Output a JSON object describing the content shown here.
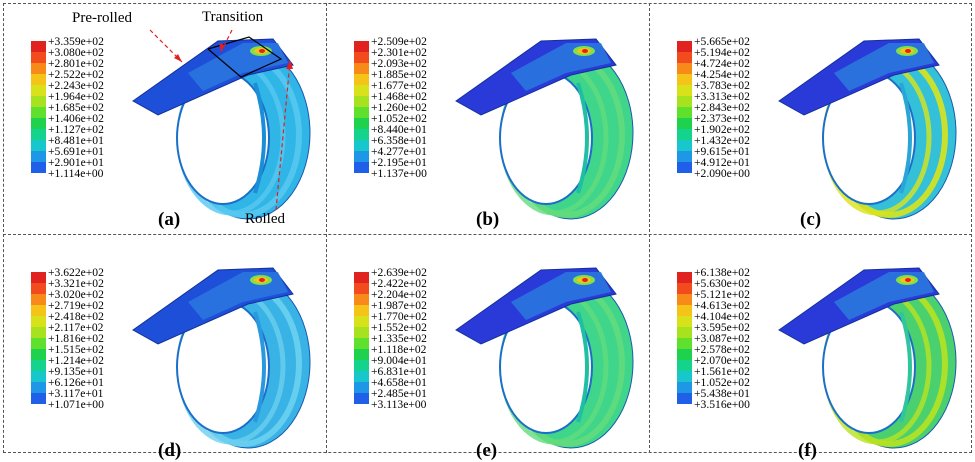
{
  "colors": [
    "#e1231f",
    "#f24b1d",
    "#f88a1a",
    "#f6c318",
    "#d8e21a",
    "#a6e21d",
    "#5fe02d",
    "#1ed24d",
    "#14d38d",
    "#18c7cc",
    "#1e97e6",
    "#2060e8",
    "#1a2de0"
  ],
  "annotations": {
    "pre_rolled": "Pre-rolled",
    "transition": "Transition",
    "rolled": "Rolled"
  },
  "panels": [
    {
      "label": "(a)",
      "theme": "mixed",
      "values": [
        "+3.359e+02",
        "+3.080e+02",
        "+2.801e+02",
        "+2.522e+02",
        "+2.243e+02",
        "+1.964e+02",
        "+1.685e+02",
        "+1.406e+02",
        "+1.127e+02",
        "+8.481e+01",
        "+5.691e+01",
        "+2.901e+01",
        "+1.114e+00"
      ]
    },
    {
      "label": "(b)",
      "theme": "green",
      "values": [
        "+2.509e+02",
        "+2.301e+02",
        "+2.093e+02",
        "+1.885e+02",
        "+1.677e+02",
        "+1.468e+02",
        "+1.260e+02",
        "+1.052e+02",
        "+8.440e+01",
        "+6.358e+01",
        "+4.277e+01",
        "+2.195e+01",
        "+1.137e+00"
      ]
    },
    {
      "label": "(c)",
      "theme": "yellow",
      "values": [
        "+5.665e+02",
        "+5.194e+02",
        "+4.724e+02",
        "+4.254e+02",
        "+3.783e+02",
        "+3.313e+02",
        "+2.843e+02",
        "+2.373e+02",
        "+1.902e+02",
        "+1.432e+02",
        "+9.615e+01",
        "+4.912e+01",
        "+2.090e+00"
      ]
    },
    {
      "label": "(d)",
      "theme": "blue",
      "values": [
        "+3.622e+02",
        "+3.321e+02",
        "+3.020e+02",
        "+2.719e+02",
        "+2.418e+02",
        "+2.117e+02",
        "+1.816e+02",
        "+1.515e+02",
        "+1.214e+02",
        "+9.135e+01",
        "+6.126e+01",
        "+3.117e+01",
        "+1.071e+00"
      ]
    },
    {
      "label": "(e)",
      "theme": "green",
      "values": [
        "+2.639e+02",
        "+2.422e+02",
        "+2.204e+02",
        "+1.987e+02",
        "+1.770e+02",
        "+1.552e+02",
        "+1.335e+02",
        "+1.118e+02",
        "+9.004e+01",
        "+6.831e+01",
        "+4.658e+01",
        "+2.485e+01",
        "+3.113e+00"
      ]
    },
    {
      "label": "(f)",
      "theme": "lime",
      "values": [
        "+6.138e+02",
        "+5.630e+02",
        "+5.121e+02",
        "+4.613e+02",
        "+4.104e+02",
        "+3.595e+02",
        "+3.087e+02",
        "+2.578e+02",
        "+2.070e+02",
        "+1.561e+02",
        "+1.052e+02",
        "+5.438e+01",
        "+3.516e+00"
      ]
    }
  ]
}
